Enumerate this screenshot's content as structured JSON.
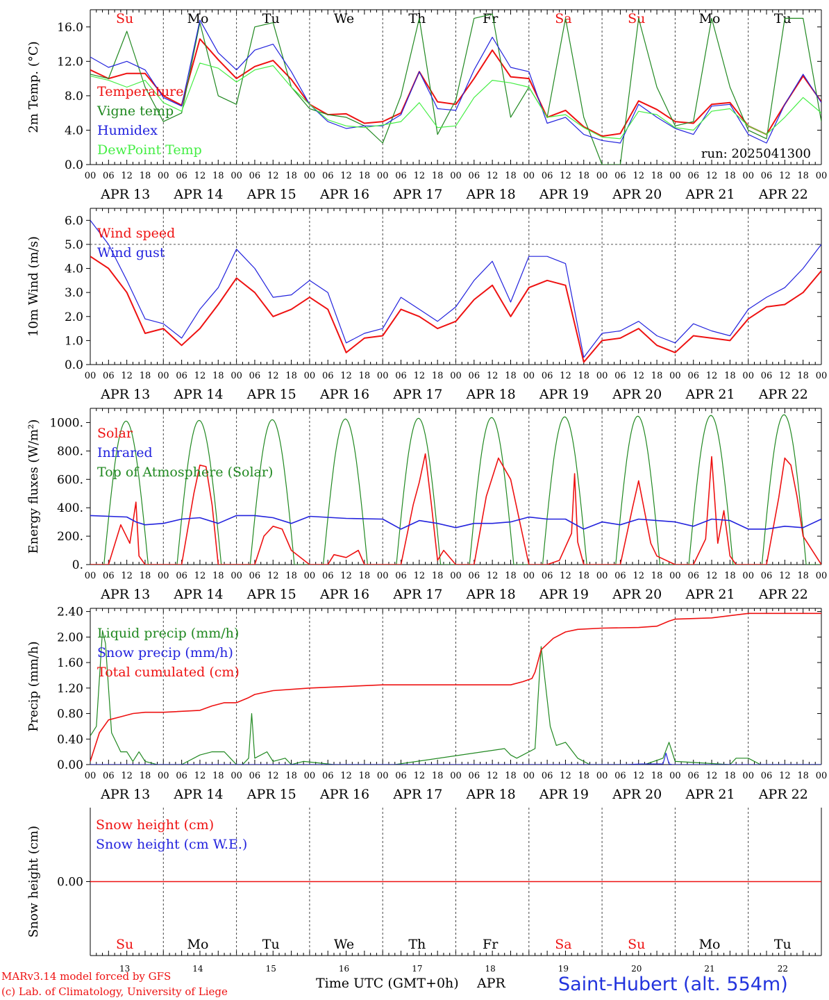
{
  "footer": {
    "credit_1": "MARv3.14 model forced by GFS",
    "credit_2": "(c) Lab. of Climatology, University of Liege",
    "xaxis_title": "Time UTC (GMT+0h)",
    "xaxis_month": "APR",
    "station": "Saint-Hubert (alt. 554m)",
    "colors": {
      "credit": "#ee1111",
      "station": "#2233dd"
    }
  },
  "chart_data": [
    {
      "type": "line",
      "ylabel": "2m Temp. (°C)",
      "ylim": [
        0,
        18
      ],
      "yticks": [
        "0.0",
        "4.0",
        "8.0",
        "12.0",
        "16.0"
      ],
      "ytick_values": [
        0,
        4,
        8,
        12,
        16
      ],
      "day_labels": [
        "Su",
        "Mo",
        "Tu",
        "We",
        "Th",
        "Fr",
        "Sa",
        "Su",
        "Mo",
        "Tu"
      ],
      "day_label_colors": [
        "#ee1111",
        "#000000",
        "#000000",
        "#000000",
        "#000000",
        "#000000",
        "#ee1111",
        "#ee1111",
        "#000000",
        "#000000"
      ],
      "run_label": "run: 2025041300",
      "x_hours": [
        0,
        6,
        12,
        18,
        24,
        30,
        36,
        42,
        48,
        54,
        60,
        66,
        72,
        78,
        84,
        90,
        96,
        102,
        108,
        114,
        120,
        126,
        132,
        138,
        144,
        150,
        156,
        162,
        168,
        174,
        180,
        186,
        192,
        198,
        204,
        210,
        216,
        222,
        228,
        234,
        240
      ],
      "series": [
        {
          "name": "Temperature",
          "color": "#ee1111",
          "width": 2,
          "values": [
            11.0,
            10.0,
            10.6,
            10.6,
            8.0,
            6.9,
            14.6,
            12.2,
            10.0,
            11.4,
            12.1,
            9.9,
            7.0,
            5.8,
            5.9,
            4.8,
            5.0,
            6.0,
            10.8,
            7.3,
            7.0,
            10.0,
            13.3,
            10.2,
            10.0,
            5.5,
            6.3,
            4.4,
            3.3,
            3.6,
            7.4,
            6.4,
            5.0,
            4.8,
            7.0,
            7.2,
            4.5,
            3.5,
            7.0,
            10.3,
            7.3
          ]
        },
        {
          "name": "Vigne temp",
          "color": "#208820",
          "width": 1.2,
          "values": [
            10.5,
            10.0,
            15.5,
            9.0,
            5.0,
            6.0,
            16.5,
            8.0,
            7.0,
            16.0,
            16.5,
            9.0,
            6.5,
            5.8,
            5.5,
            4.5,
            2.5,
            8.0,
            17.0,
            3.5,
            7.5,
            17.0,
            17.5,
            5.5,
            9.0,
            5.5,
            17.0,
            5.5,
            0.0,
            0.0,
            17.0,
            9.0,
            4.5,
            5.0,
            17.0,
            9.0,
            4.0,
            3.0,
            17.0,
            17.0,
            5.0
          ]
        },
        {
          "name": "Humidex",
          "color": "#2222dd",
          "width": 1.2,
          "values": [
            12.5,
            11.3,
            12.0,
            11.0,
            7.8,
            6.8,
            16.8,
            13.0,
            11.0,
            13.3,
            14.0,
            10.8,
            7.0,
            5.0,
            4.2,
            4.5,
            4.5,
            5.8,
            10.8,
            6.5,
            6.3,
            11.0,
            14.8,
            11.3,
            10.8,
            4.8,
            5.5,
            3.5,
            2.8,
            2.5,
            7.0,
            5.5,
            4.2,
            3.5,
            6.8,
            7.0,
            3.5,
            2.5,
            7.0,
            10.5,
            7.2
          ]
        },
        {
          "name": "DewPoint Temp",
          "color": "#44ee44",
          "width": 1.2,
          "values": [
            10.3,
            9.8,
            9.0,
            9.8,
            7.2,
            6.2,
            11.8,
            11.2,
            9.6,
            11.0,
            11.5,
            9.0,
            7.0,
            5.2,
            4.5,
            4.3,
            4.6,
            5.0,
            7.2,
            4.3,
            4.5,
            7.8,
            9.8,
            9.5,
            9.0,
            5.5,
            5.8,
            4.3,
            3.2,
            3.0,
            6.2,
            5.8,
            4.3,
            4.0,
            6.2,
            6.5,
            4.5,
            3.5,
            5.5,
            7.8,
            6.0
          ]
        }
      ]
    },
    {
      "type": "line",
      "ylabel": "10m Wind (m/s)",
      "ylim": [
        0,
        6.5
      ],
      "yticks": [
        "0.0",
        "1.0",
        "2.0",
        "3.0",
        "4.0",
        "5.0",
        "6.0"
      ],
      "ytick_values": [
        0,
        1,
        2,
        3,
        4,
        5,
        6
      ],
      "reference_line": 5.0,
      "x_hours": [
        0,
        6,
        12,
        18,
        24,
        30,
        36,
        42,
        48,
        54,
        60,
        66,
        72,
        78,
        84,
        90,
        96,
        102,
        108,
        114,
        120,
        126,
        132,
        138,
        144,
        150,
        156,
        162,
        168,
        174,
        180,
        186,
        192,
        198,
        204,
        210,
        216,
        222,
        228,
        234,
        240
      ],
      "series": [
        {
          "name": "Wind speed",
          "color": "#ee1111",
          "width": 2,
          "values": [
            4.5,
            4.0,
            3.0,
            1.3,
            1.5,
            0.8,
            1.5,
            2.5,
            3.6,
            3.0,
            2.0,
            2.3,
            2.8,
            2.3,
            0.5,
            1.1,
            1.2,
            2.3,
            2.0,
            1.5,
            1.8,
            2.7,
            3.3,
            2.0,
            3.2,
            3.5,
            3.3,
            0.1,
            1.0,
            1.1,
            1.5,
            0.8,
            0.5,
            1.2,
            1.1,
            1.0,
            1.9,
            2.4,
            2.5,
            3.0,
            3.9
          ]
        },
        {
          "name": "Wind gust",
          "color": "#2222dd",
          "width": 1.2,
          "values": [
            6.0,
            5.0,
            3.5,
            1.9,
            1.7,
            1.1,
            2.3,
            3.2,
            4.8,
            4.0,
            2.8,
            2.9,
            3.5,
            3.0,
            0.9,
            1.3,
            1.5,
            2.8,
            2.3,
            1.8,
            2.4,
            3.5,
            4.3,
            2.6,
            4.5,
            4.5,
            4.2,
            0.3,
            1.3,
            1.4,
            1.8,
            1.2,
            0.9,
            1.7,
            1.4,
            1.2,
            2.3,
            2.8,
            3.2,
            4.0,
            5.0
          ]
        }
      ]
    },
    {
      "type": "line",
      "ylabel": "Energy fluxes (W/m²)",
      "ylim": [
        0,
        1100
      ],
      "yticks": [
        "0.",
        "200.",
        "400.",
        "600.",
        "800.",
        "1000."
      ],
      "ytick_values": [
        0,
        200,
        400,
        600,
        800,
        1000
      ],
      "toa_solar": {
        "name": "Top of Atmosphere (Solar)",
        "color": "#208820",
        "rise_hour": 4.5,
        "set_hour": 19,
        "peaks": [
          1010,
          1015,
          1020,
          1025,
          1030,
          1035,
          1040,
          1045,
          1050,
          1055
        ]
      },
      "series": [
        {
          "name": "Solar",
          "color": "#ee1111",
          "width": 1.6,
          "x_hours": [
            0,
            6,
            10,
            13,
            15,
            16,
            18,
            24,
            30,
            34,
            36,
            38,
            40,
            42,
            48,
            54,
            57,
            60,
            63,
            66,
            72,
            78,
            80,
            84,
            88,
            90,
            96,
            102,
            106,
            108,
            110,
            112,
            114,
            116,
            120,
            126,
            130,
            134,
            138,
            144,
            150,
            154,
            158,
            159,
            160,
            162,
            168,
            174,
            178,
            180,
            184,
            186,
            192,
            198,
            202,
            204,
            206,
            208,
            210,
            212,
            216,
            222,
            226,
            228,
            230,
            232,
            234,
            240
          ],
          "values": [
            0,
            0,
            280,
            150,
            440,
            60,
            0,
            0,
            0,
            500,
            700,
            690,
            420,
            0,
            0,
            0,
            200,
            270,
            250,
            100,
            0,
            0,
            70,
            50,
            100,
            0,
            0,
            0,
            420,
            580,
            780,
            420,
            30,
            100,
            0,
            0,
            480,
            750,
            600,
            0,
            0,
            30,
            220,
            640,
            160,
            0,
            0,
            0,
            400,
            590,
            150,
            60,
            0,
            0,
            180,
            760,
            150,
            380,
            60,
            0,
            0,
            0,
            470,
            750,
            700,
            480,
            200,
            0
          ]
        },
        {
          "name": "Infrared",
          "color": "#2222dd",
          "width": 1.6,
          "x_hours": [
            0,
            12,
            15,
            18,
            24,
            30,
            36,
            42,
            48,
            54,
            60,
            66,
            72,
            84,
            96,
            102,
            108,
            114,
            120,
            126,
            132,
            138,
            144,
            150,
            156,
            162,
            168,
            174,
            180,
            186,
            192,
            198,
            204,
            210,
            216,
            222,
            228,
            234,
            240
          ],
          "values": [
            345,
            335,
            300,
            280,
            290,
            320,
            330,
            290,
            345,
            345,
            330,
            290,
            340,
            325,
            320,
            250,
            310,
            290,
            260,
            290,
            290,
            300,
            335,
            320,
            320,
            250,
            300,
            280,
            320,
            310,
            300,
            270,
            320,
            310,
            250,
            250,
            270,
            260,
            320
          ]
        }
      ]
    },
    {
      "type": "line",
      "ylabel": "Precip (mm/h)",
      "ylim": [
        0,
        2.45
      ],
      "yticks": [
        "0.00",
        "0.40",
        "0.80",
        "1.20",
        "1.60",
        "2.00",
        "2.40"
      ],
      "ytick_values": [
        0,
        0.4,
        0.8,
        1.2,
        1.6,
        2.0,
        2.4
      ],
      "series": [
        {
          "name": "Liquid precip (mm/h)",
          "color": "#208820",
          "width": 1.2,
          "x_hours": [
            0,
            2,
            4,
            5,
            7,
            10,
            12,
            14,
            16,
            18,
            22,
            30,
            36,
            40,
            44,
            46,
            48,
            50,
            52,
            53,
            54,
            58,
            60,
            64,
            66,
            70,
            80,
            100,
            136,
            138,
            140,
            146,
            148,
            151,
            153,
            156,
            160,
            164,
            170,
            172,
            182,
            188,
            190,
            192,
            210,
            212,
            216,
            220,
            240
          ],
          "values": [
            0.45,
            0.6,
            2.1,
            1.9,
            0.5,
            0.2,
            0.2,
            0.05,
            0.2,
            0.05,
            0,
            0,
            0.15,
            0.2,
            0.2,
            0.1,
            0,
            0,
            0.1,
            0.8,
            0.1,
            0.2,
            0.05,
            0.1,
            0,
            0.05,
            0,
            0,
            0.25,
            0.15,
            0.1,
            0.25,
            1.85,
            0.6,
            0.3,
            0.35,
            0.1,
            0,
            0,
            0,
            0,
            0.1,
            0.35,
            0.05,
            0,
            0.1,
            0.1,
            0,
            0
          ]
        },
        {
          "name": "Snow precip (mm/h)",
          "color": "#2222dd",
          "width": 1.2,
          "x_hours": [
            0,
            176,
            181,
            188,
            189,
            190,
            191,
            240
          ],
          "values": [
            0,
            0,
            0.01,
            0.01,
            0.18,
            0.01,
            0,
            0
          ]
        },
        {
          "name": "Total cumulated (cm)",
          "color": "#ee1111",
          "width": 1.6,
          "x_hours": [
            0,
            3,
            6,
            10,
            14,
            18,
            24,
            36,
            40,
            44,
            48,
            52,
            54,
            60,
            72,
            96,
            120,
            138,
            142,
            145,
            146,
            148,
            152,
            156,
            160,
            168,
            180,
            186,
            190,
            192,
            204,
            216,
            222,
            240
          ],
          "values": [
            0.05,
            0.5,
            0.7,
            0.75,
            0.8,
            0.82,
            0.82,
            0.85,
            0.92,
            0.97,
            0.97,
            1.05,
            1.1,
            1.16,
            1.2,
            1.25,
            1.25,
            1.25,
            1.3,
            1.35,
            1.45,
            1.8,
            1.98,
            2.08,
            2.12,
            2.14,
            2.15,
            2.17,
            2.25,
            2.28,
            2.3,
            2.37,
            2.37,
            2.37
          ]
        }
      ]
    },
    {
      "type": "line",
      "ylabel": "Snow height (cm)",
      "ylim": [
        -1,
        1
      ],
      "yticks": [
        "0.00"
      ],
      "ytick_values": [
        0
      ],
      "series": [
        {
          "name": "Snow height (cm)",
          "color": "#ee1111",
          "width": 1.6,
          "x_hours": [
            0,
            240
          ],
          "values": [
            0,
            0
          ]
        },
        {
          "name": "Snow height (cm W.E.)",
          "color": "#2222dd",
          "width": 1.2,
          "x_hours": [],
          "values": []
        }
      ],
      "bottom_day_labels": [
        "Su",
        "Mo",
        "Tu",
        "We",
        "Th",
        "Fr",
        "Sa",
        "Su",
        "Mo",
        "Tu"
      ],
      "bottom_day_label_colors": [
        "#ee1111",
        "#000000",
        "#000000",
        "#000000",
        "#000000",
        "#000000",
        "#ee1111",
        "#ee1111",
        "#000000",
        "#000000"
      ],
      "bottom_day_numbers": [
        "13",
        "14",
        "15",
        "16",
        "17",
        "18",
        "19",
        "20",
        "21",
        "22"
      ]
    }
  ],
  "x_axis": {
    "hour_labels": [
      "00",
      "06",
      "12",
      "18"
    ],
    "final_label": "00",
    "date_labels": [
      "APR 13",
      "APR 14",
      "APR 15",
      "APR 16",
      "APR 17",
      "APR 18",
      "APR 19",
      "APR 20",
      "APR 21",
      "APR 22"
    ]
  }
}
